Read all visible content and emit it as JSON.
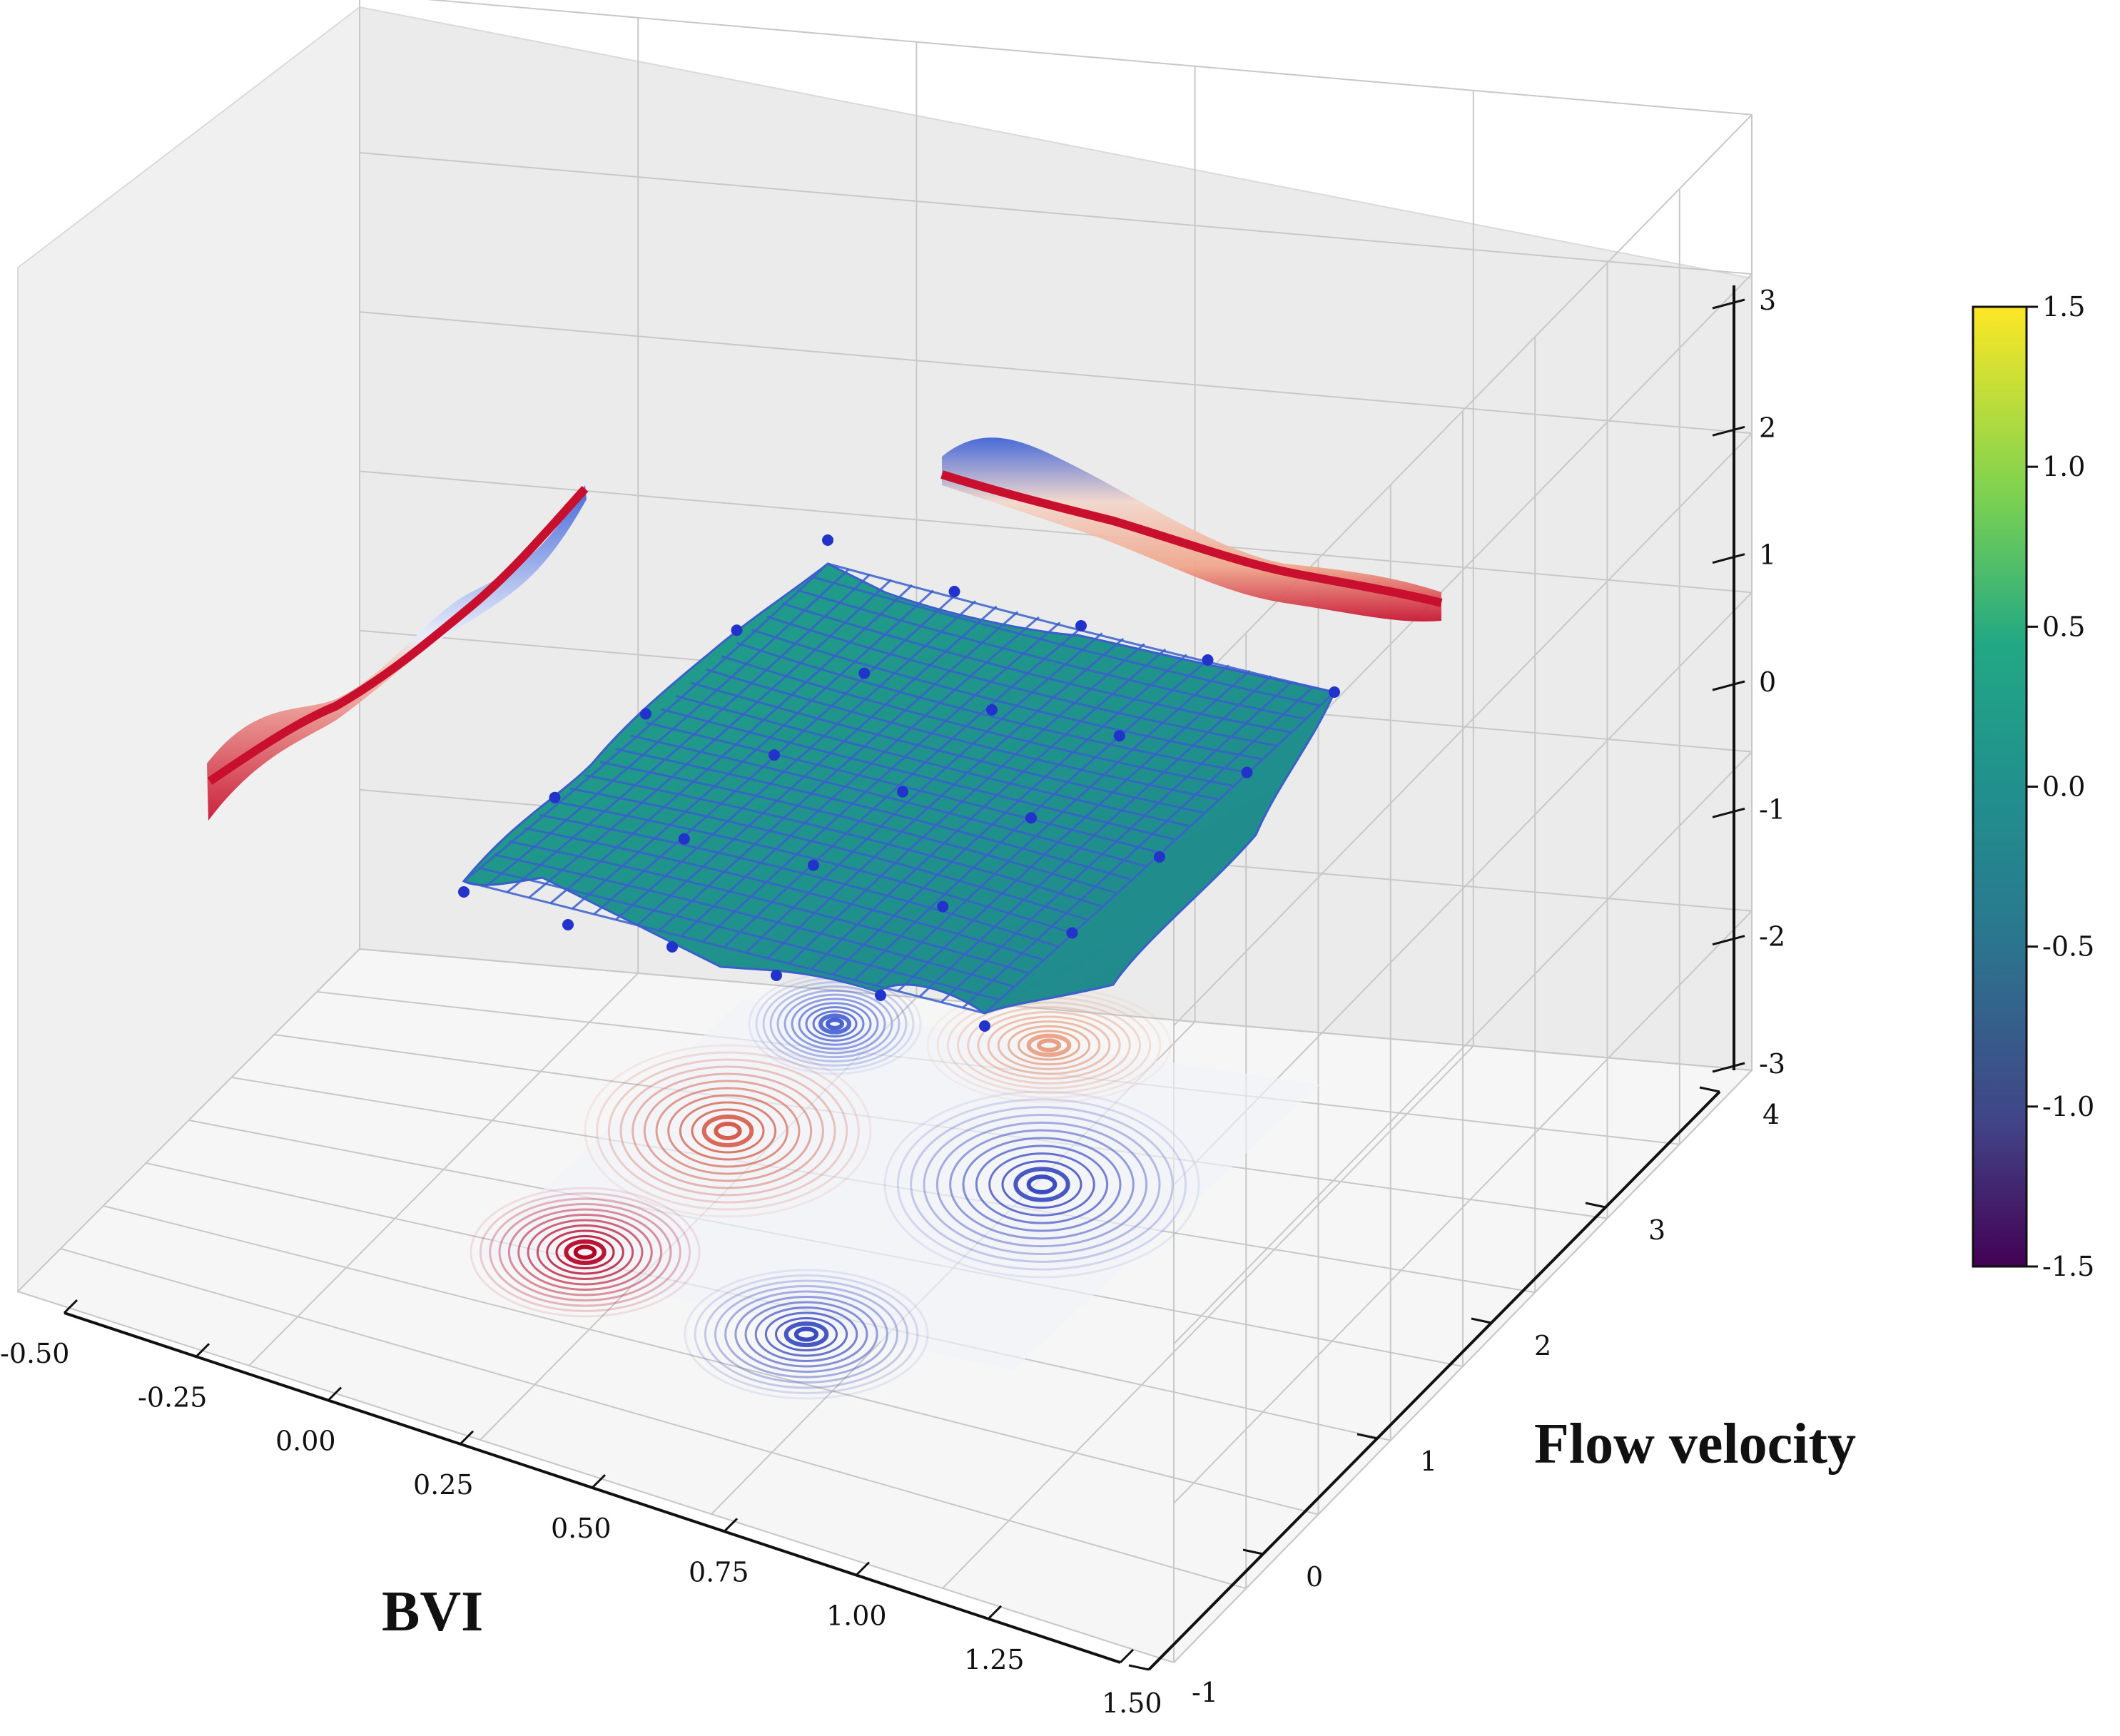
{
  "chart_data": {
    "type": "surface3d",
    "xlabel": "BVI",
    "ylabel": "Flow velocity",
    "zlabel": "",
    "xlim": [
      -0.5,
      1.5
    ],
    "ylim": [
      -1,
      4
    ],
    "zlim": [
      -3,
      3
    ],
    "x_ticks": [
      "-0.50",
      "-0.25",
      "0.00",
      "0.25",
      "0.50",
      "0.75",
      "1.00",
      "1.25",
      "1.50"
    ],
    "y_ticks": [
      "-1",
      "0",
      "1",
      "2",
      "3",
      "4"
    ],
    "z_ticks": [
      "-3",
      "-2",
      "-1",
      "0",
      "1",
      "2",
      "3"
    ],
    "colorbar": {
      "ticks": [
        "1.5",
        "1.0",
        "0.5",
        "0.0",
        "-0.5",
        "-1.0",
        "-1.5"
      ],
      "range": [
        -1.5,
        1.5
      ],
      "colormap": "viridis"
    },
    "surface": {
      "x_range": [
        0,
        1
      ],
      "y_range": [
        0,
        3
      ],
      "colormap": "viridis",
      "edge_color": "#3a5fcd"
    },
    "sample_points": [
      {
        "x": 0.0,
        "y": 0.0,
        "z": -0.25
      },
      {
        "x": 0.2,
        "y": 0.0,
        "z": -0.4
      },
      {
        "x": 0.4,
        "y": 0.0,
        "z": -0.3
      },
      {
        "x": 0.6,
        "y": 0.0,
        "z": -0.35
      },
      {
        "x": 0.8,
        "y": 0.0,
        "z": -0.2
      },
      {
        "x": 1.0,
        "y": 0.0,
        "z": -0.3
      },
      {
        "x": 0.0,
        "y": 0.75,
        "z": 0.1
      },
      {
        "x": 0.25,
        "y": 0.75,
        "z": -0.1
      },
      {
        "x": 0.5,
        "y": 0.75,
        "z": 0.05
      },
      {
        "x": 0.75,
        "y": 0.75,
        "z": -0.15
      },
      {
        "x": 1.0,
        "y": 0.75,
        "z": 0.0
      },
      {
        "x": 0.0,
        "y": 1.5,
        "z": 0.2
      },
      {
        "x": 0.25,
        "y": 1.5,
        "z": 0.0
      },
      {
        "x": 0.5,
        "y": 1.5,
        "z": -0.1
      },
      {
        "x": 0.75,
        "y": 1.5,
        "z": 0.05
      },
      {
        "x": 1.0,
        "y": 1.5,
        "z": -0.1
      },
      {
        "x": 0.0,
        "y": 2.25,
        "z": 0.3
      },
      {
        "x": 0.25,
        "y": 2.25,
        "z": 0.05
      },
      {
        "x": 0.5,
        "y": 2.25,
        "z": -0.05
      },
      {
        "x": 0.75,
        "y": 2.25,
        "z": 0.1
      },
      {
        "x": 1.0,
        "y": 2.25,
        "z": 0.0
      },
      {
        "x": 0.0,
        "y": 3.0,
        "z": 0.55
      },
      {
        "x": 0.25,
        "y": 3.0,
        "z": 0.1
      },
      {
        "x": 0.5,
        "y": 3.0,
        "z": 0.05
      },
      {
        "x": 0.75,
        "y": 3.0,
        "z": 0.0
      },
      {
        "x": 1.0,
        "y": 3.0,
        "z": 0.0
      }
    ],
    "projections": {
      "floor_contour": {
        "z": -3,
        "colormap": "coolwarm"
      },
      "back_wall_x": {
        "x": -0.5,
        "colormap": "coolwarm"
      },
      "back_wall_y": {
        "y": 4,
        "colormap": "coolwarm"
      }
    }
  },
  "colors": {
    "pane": "#f2f2f2",
    "grid": "#c8c8c8",
    "surface_edge": "#3a5fcd",
    "point": "#2233cc",
    "warm": "#c8102e",
    "cool": "#3a5fd6"
  }
}
